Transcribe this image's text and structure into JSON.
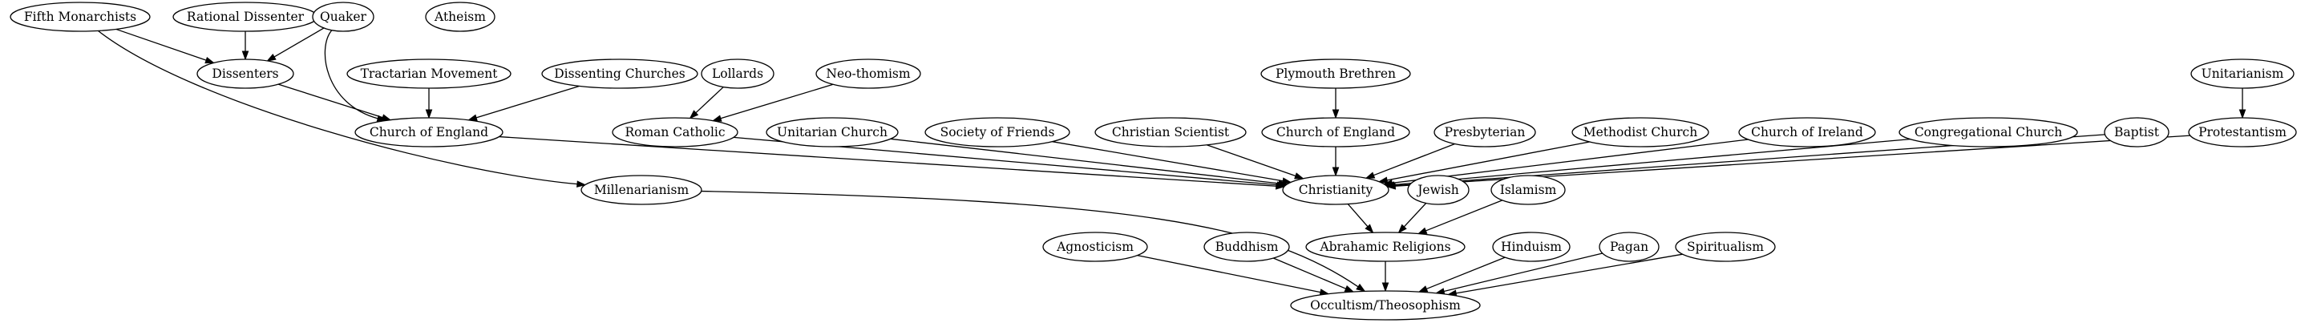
{
  "graph": {
    "nodes": [
      {
        "id": "fifth-monarchists",
        "label": "Fifth Monarchists"
      },
      {
        "id": "rational-dissenter",
        "label": "Rational Dissenter"
      },
      {
        "id": "quaker",
        "label": "Quaker"
      },
      {
        "id": "atheism",
        "label": "Atheism"
      },
      {
        "id": "dissenters",
        "label": "Dissenters"
      },
      {
        "id": "tractarian-movement",
        "label": "Tractarian Movement"
      },
      {
        "id": "dissenting-churches",
        "label": "Dissenting Churches"
      },
      {
        "id": "lollards",
        "label": "Lollards"
      },
      {
        "id": "neo-thomism",
        "label": "Neo-thomism"
      },
      {
        "id": "plymouth-brethren",
        "label": "Plymouth Brethren"
      },
      {
        "id": "unitarianism",
        "label": "Unitarianism"
      },
      {
        "id": "church-of-england-1",
        "label": "Church of England"
      },
      {
        "id": "roman-catholic",
        "label": "Roman Catholic"
      },
      {
        "id": "unitarian-church",
        "label": "Unitarian Church"
      },
      {
        "id": "society-of-friends",
        "label": "Society of Friends"
      },
      {
        "id": "christian-scientist",
        "label": "Christian Scientist"
      },
      {
        "id": "church-of-england-2",
        "label": "Church of England"
      },
      {
        "id": "presbyterian",
        "label": "Presbyterian"
      },
      {
        "id": "methodist-church",
        "label": "Methodist Church"
      },
      {
        "id": "church-of-ireland",
        "label": "Church of Ireland"
      },
      {
        "id": "congregational-church",
        "label": "Congregational Church"
      },
      {
        "id": "baptist",
        "label": "Baptist"
      },
      {
        "id": "protestantism",
        "label": "Protestantism"
      },
      {
        "id": "millenarianism",
        "label": "Millenarianism"
      },
      {
        "id": "christianity",
        "label": "Christianity"
      },
      {
        "id": "jewish",
        "label": "Jewish"
      },
      {
        "id": "islamism",
        "label": "Islamism"
      },
      {
        "id": "agnosticism",
        "label": "Agnosticism"
      },
      {
        "id": "buddhism",
        "label": "Buddhism"
      },
      {
        "id": "abrahamic-religions",
        "label": "Abrahamic Religions"
      },
      {
        "id": "hinduism",
        "label": "Hinduism"
      },
      {
        "id": "pagan",
        "label": "Pagan"
      },
      {
        "id": "spiritualism",
        "label": "Spiritualism"
      },
      {
        "id": "occultism-theosophism",
        "label": "Occultism/Theosophism"
      }
    ],
    "edges": [
      {
        "from": "fifth-monarchists",
        "to": "dissenters"
      },
      {
        "from": "fifth-monarchists",
        "to": "millenarianism"
      },
      {
        "from": "rational-dissenter",
        "to": "dissenters"
      },
      {
        "from": "quaker",
        "to": "dissenters"
      },
      {
        "from": "quaker",
        "to": "church-of-england-1"
      },
      {
        "from": "dissenters",
        "to": "church-of-england-1"
      },
      {
        "from": "tractarian-movement",
        "to": "church-of-england-1"
      },
      {
        "from": "dissenting-churches",
        "to": "church-of-england-1"
      },
      {
        "from": "lollards",
        "to": "roman-catholic"
      },
      {
        "from": "neo-thomism",
        "to": "roman-catholic"
      },
      {
        "from": "plymouth-brethren",
        "to": "church-of-england-2"
      },
      {
        "from": "unitarianism",
        "to": "protestantism"
      },
      {
        "from": "church-of-england-1",
        "to": "christianity"
      },
      {
        "from": "roman-catholic",
        "to": "christianity"
      },
      {
        "from": "unitarian-church",
        "to": "christianity"
      },
      {
        "from": "society-of-friends",
        "to": "christianity"
      },
      {
        "from": "christian-scientist",
        "to": "christianity"
      },
      {
        "from": "church-of-england-2",
        "to": "christianity"
      },
      {
        "from": "presbyterian",
        "to": "christianity"
      },
      {
        "from": "methodist-church",
        "to": "christianity"
      },
      {
        "from": "church-of-ireland",
        "to": "christianity"
      },
      {
        "from": "congregational-church",
        "to": "christianity"
      },
      {
        "from": "baptist",
        "to": "christianity"
      },
      {
        "from": "protestantism",
        "to": "christianity"
      },
      {
        "from": "millenarianism",
        "to": "occultism-theosophism"
      },
      {
        "from": "christianity",
        "to": "abrahamic-religions"
      },
      {
        "from": "jewish",
        "to": "abrahamic-religions"
      },
      {
        "from": "islamism",
        "to": "abrahamic-religions"
      },
      {
        "from": "agnosticism",
        "to": "occultism-theosophism"
      },
      {
        "from": "buddhism",
        "to": "occultism-theosophism"
      },
      {
        "from": "abrahamic-religions",
        "to": "occultism-theosophism"
      },
      {
        "from": "hinduism",
        "to": "occultism-theosophism"
      },
      {
        "from": "pagan",
        "to": "occultism-theosophism"
      },
      {
        "from": "spiritualism",
        "to": "occultism-theosophism"
      }
    ]
  }
}
